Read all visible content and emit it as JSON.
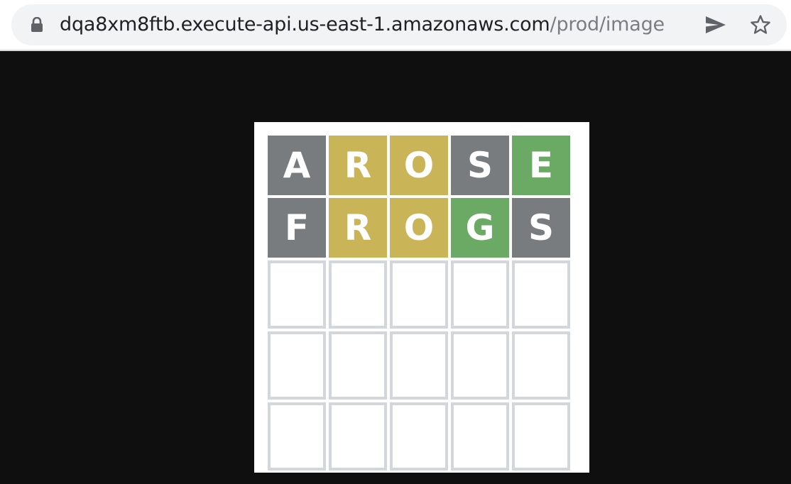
{
  "browser": {
    "url_host": "dqa8xm8ftb.execute-api.us-east-1.amazonaws.com",
    "url_path": "/prod/image",
    "icons": {
      "lock": "lock-icon",
      "send": "send-icon",
      "bookmark": "star-icon"
    }
  },
  "wordle": {
    "colors": {
      "absent": "#787c7e",
      "present": "#c9b458",
      "correct": "#6aaa64",
      "empty_border": "#d3d6da"
    },
    "rows": [
      [
        {
          "letter": "A",
          "state": "absent"
        },
        {
          "letter": "R",
          "state": "present"
        },
        {
          "letter": "O",
          "state": "present"
        },
        {
          "letter": "S",
          "state": "absent"
        },
        {
          "letter": "E",
          "state": "correct"
        }
      ],
      [
        {
          "letter": "F",
          "state": "absent"
        },
        {
          "letter": "R",
          "state": "present"
        },
        {
          "letter": "O",
          "state": "present"
        },
        {
          "letter": "G",
          "state": "correct"
        },
        {
          "letter": "S",
          "state": "absent"
        }
      ],
      [
        {
          "letter": "",
          "state": "empty"
        },
        {
          "letter": "",
          "state": "empty"
        },
        {
          "letter": "",
          "state": "empty"
        },
        {
          "letter": "",
          "state": "empty"
        },
        {
          "letter": "",
          "state": "empty"
        }
      ],
      [
        {
          "letter": "",
          "state": "empty"
        },
        {
          "letter": "",
          "state": "empty"
        },
        {
          "letter": "",
          "state": "empty"
        },
        {
          "letter": "",
          "state": "empty"
        },
        {
          "letter": "",
          "state": "empty"
        }
      ],
      [
        {
          "letter": "",
          "state": "empty"
        },
        {
          "letter": "",
          "state": "empty"
        },
        {
          "letter": "",
          "state": "empty"
        },
        {
          "letter": "",
          "state": "empty"
        },
        {
          "letter": "",
          "state": "empty"
        }
      ]
    ]
  }
}
